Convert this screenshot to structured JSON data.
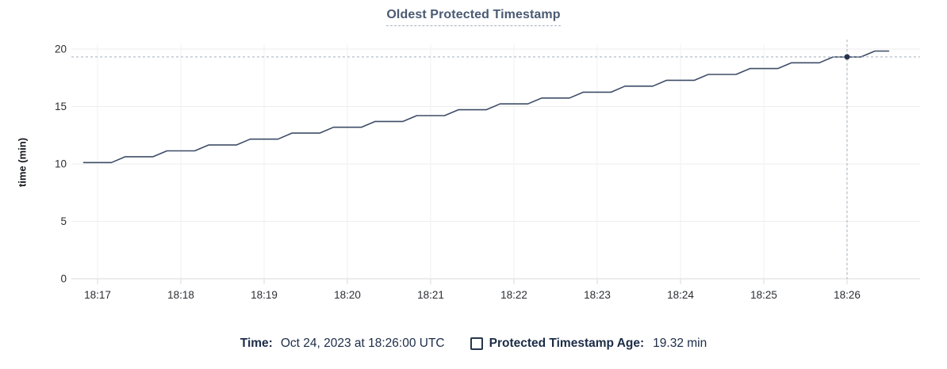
{
  "title": "Oldest Protected Timestamp",
  "colors": {
    "series_line": "#3e4d67",
    "hover_dot": "#26354c",
    "crosshair": "#a3b0be",
    "gridline": "#ededed",
    "vertical_gridline": "#f1f1f1",
    "axis_line": "#d9d9d9",
    "title_text": "#4a5a72",
    "legend_text": "#1c2c47",
    "tick_text": "#2b2e33"
  },
  "legend": {
    "time_label": "Time:",
    "time_value": "Oct 24, 2023 at 18:26:00 UTC",
    "series_label": "Protected Timestamp Age:",
    "series_value": "19.32 min"
  },
  "chart_data": {
    "type": "line",
    "title": "Oldest Protected Timestamp",
    "xlabel": "",
    "ylabel": "time (min)",
    "ylim": [
      0,
      20
    ],
    "y_ticks": [
      0,
      5,
      10,
      15,
      20
    ],
    "x_tick_interval": "1 min",
    "x_range": [
      "18:16:47",
      "18:26:52"
    ],
    "grid": true,
    "legend_position": "bottom",
    "x_ticks": [
      {
        "time": "18:17:00",
        "label": "18:17"
      },
      {
        "time": "18:18:00",
        "label": "18:18"
      },
      {
        "time": "18:19:00",
        "label": "18:19"
      },
      {
        "time": "18:20:00",
        "label": "18:20"
      },
      {
        "time": "18:21:00",
        "label": "18:21"
      },
      {
        "time": "18:22:00",
        "label": "18:22"
      },
      {
        "time": "18:23:00",
        "label": "18:23"
      },
      {
        "time": "18:24:00",
        "label": "18:24"
      },
      {
        "time": "18:25:00",
        "label": "18:25"
      },
      {
        "time": "18:26:00",
        "label": "18:26"
      }
    ],
    "series": [
      {
        "name": "Protected Timestamp Age",
        "unit": "min",
        "color": "#3e4d67",
        "points": [
          [
            "18:16:50",
            10.12
          ],
          [
            "18:17:00",
            10.12
          ],
          [
            "18:17:10",
            10.12
          ],
          [
            "18:17:20",
            10.63
          ],
          [
            "18:17:30",
            10.63
          ],
          [
            "18:17:40",
            10.63
          ],
          [
            "18:17:50",
            11.14
          ],
          [
            "18:18:00",
            11.14
          ],
          [
            "18:18:10",
            11.14
          ],
          [
            "18:18:20",
            11.65
          ],
          [
            "18:18:30",
            11.65
          ],
          [
            "18:18:40",
            11.65
          ],
          [
            "18:18:50",
            12.16
          ],
          [
            "18:19:00",
            12.16
          ],
          [
            "18:19:10",
            12.16
          ],
          [
            "18:19:20",
            12.68
          ],
          [
            "18:19:30",
            12.68
          ],
          [
            "18:19:40",
            12.68
          ],
          [
            "18:19:50",
            13.19
          ],
          [
            "18:20:00",
            13.19
          ],
          [
            "18:20:10",
            13.19
          ],
          [
            "18:20:20",
            13.7
          ],
          [
            "18:20:30",
            13.7
          ],
          [
            "18:20:40",
            13.7
          ],
          [
            "18:20:50",
            14.21
          ],
          [
            "18:21:00",
            14.21
          ],
          [
            "18:21:10",
            14.21
          ],
          [
            "18:21:20",
            14.72
          ],
          [
            "18:21:30",
            14.72
          ],
          [
            "18:21:40",
            14.72
          ],
          [
            "18:21:50",
            15.23
          ],
          [
            "18:22:00",
            15.23
          ],
          [
            "18:22:10",
            15.23
          ],
          [
            "18:22:20",
            15.74
          ],
          [
            "18:22:30",
            15.74
          ],
          [
            "18:22:40",
            15.74
          ],
          [
            "18:22:50",
            16.25
          ],
          [
            "18:23:00",
            16.25
          ],
          [
            "18:23:10",
            16.25
          ],
          [
            "18:23:20",
            16.77
          ],
          [
            "18:23:30",
            16.77
          ],
          [
            "18:23:40",
            16.77
          ],
          [
            "18:23:50",
            17.28
          ],
          [
            "18:24:00",
            17.28
          ],
          [
            "18:24:10",
            17.28
          ],
          [
            "18:24:20",
            17.79
          ],
          [
            "18:24:30",
            17.79
          ],
          [
            "18:24:40",
            17.79
          ],
          [
            "18:24:50",
            18.3
          ],
          [
            "18:25:00",
            18.3
          ],
          [
            "18:25:10",
            18.3
          ],
          [
            "18:25:20",
            18.81
          ],
          [
            "18:25:30",
            18.81
          ],
          [
            "18:25:40",
            18.81
          ],
          [
            "18:25:50",
            19.32
          ],
          [
            "18:26:00",
            19.32
          ],
          [
            "18:26:10",
            19.32
          ],
          [
            "18:26:20",
            19.83
          ],
          [
            "18:26:30",
            19.83
          ]
        ]
      }
    ],
    "hover": {
      "time": "18:26:00",
      "time_label": "Oct 24, 2023 at 18:26:00 UTC",
      "value": 19.32,
      "value_label": "19.32 min"
    }
  }
}
